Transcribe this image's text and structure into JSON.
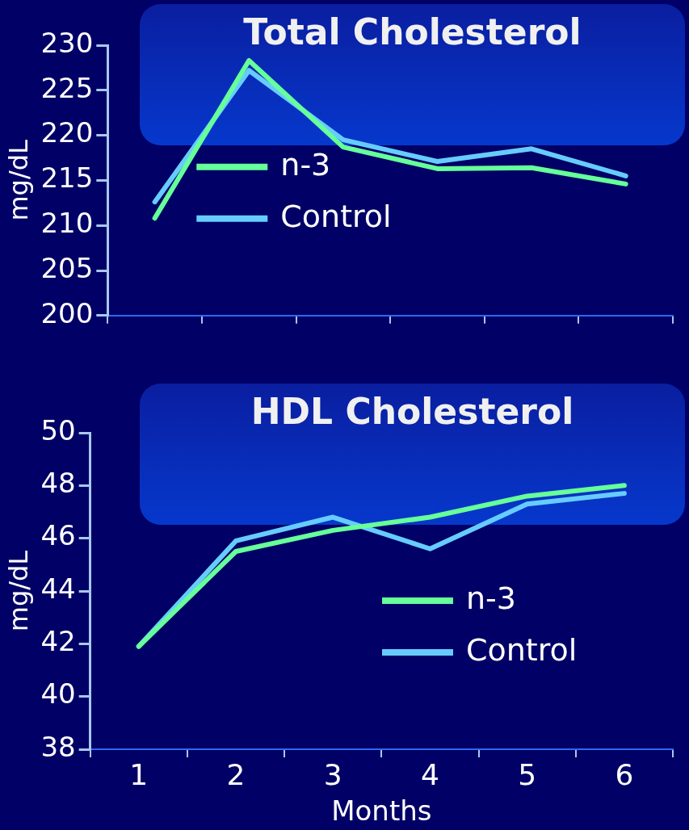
{
  "chart_data": [
    {
      "type": "line",
      "title": "Total Cholesterol",
      "ylabel": "mg/dL",
      "categories": [
        null,
        null,
        null,
        null,
        null,
        null
      ],
      "series": [
        {
          "name": "n-3",
          "color": "#66ff99",
          "values": [
            210.8,
            228.3,
            218.7,
            216.3,
            216.4,
            214.6
          ]
        },
        {
          "name": "Control",
          "color": "#66ccff",
          "values": [
            212.6,
            227.2,
            219.5,
            217.1,
            218.5,
            215.5
          ]
        }
      ],
      "ylim": [
        200,
        230
      ],
      "yticks": [
        200,
        205,
        210,
        215,
        220,
        225,
        230
      ],
      "grid": false,
      "legend": "bottom left"
    },
    {
      "type": "line",
      "title": "HDL Cholesterol",
      "xlabel": "Months",
      "ylabel": "mg/dL",
      "categories": [
        "1",
        "2",
        "3",
        "4",
        "5",
        "6"
      ],
      "series": [
        {
          "name": "n-3",
          "color": "#66ff99",
          "values": [
            41.9,
            45.5,
            46.3,
            46.8,
            47.6,
            48.0
          ]
        },
        {
          "name": "Control",
          "color": "#66ccff",
          "values": [
            41.9,
            45.9,
            46.8,
            45.6,
            47.3,
            47.7
          ]
        }
      ],
      "ylim": [
        38,
        50
      ],
      "yticks": [
        38,
        40,
        42,
        44,
        46,
        48,
        50
      ],
      "grid": false,
      "legend": "bottom right"
    }
  ]
}
